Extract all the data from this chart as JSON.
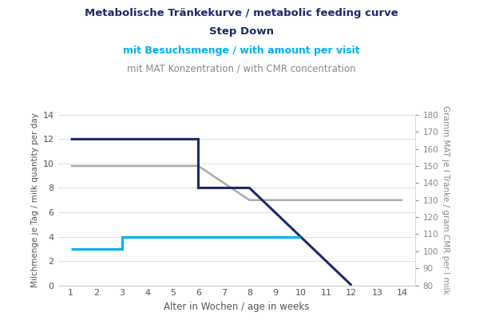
{
  "title_line1": "Metabolische Tränkekurve / metabolic feeding curve",
  "title_line2": "Step Down",
  "subtitle_cyan": "mit Besuchsmenge / with amount per visit",
  "subtitle_gray": "mit MAT Konzentration / with CMR concentration",
  "xlabel": "Alter in Wochen / age in weeks",
  "ylabel_left": "Milchmenge je Tag / milk quantity per day",
  "ylabel_right": "Gramm MAT je l Tränke / gram CMR per l milk",
  "xlim": [
    0.5,
    14.5
  ],
  "ylim_left": [
    0,
    14
  ],
  "ylim_right": [
    80,
    180
  ],
  "xticks": [
    1,
    2,
    3,
    4,
    5,
    6,
    7,
    8,
    9,
    10,
    11,
    12,
    13,
    14
  ],
  "yticks_left": [
    0,
    2,
    4,
    6,
    8,
    10,
    12,
    14
  ],
  "yticks_right": [
    80,
    90,
    100,
    110,
    120,
    130,
    140,
    150,
    160,
    170,
    180
  ],
  "navy_x": [
    1,
    6,
    6,
    8,
    8,
    12
  ],
  "navy_y": [
    12,
    12,
    8,
    8,
    8,
    0
  ],
  "navy_color": "#1b2a6b",
  "navy_linewidth": 2.2,
  "cyan_x": [
    1,
    2,
    3,
    3,
    10
  ],
  "cyan_y": [
    3,
    3,
    3,
    4,
    4
  ],
  "cyan_color": "#00b0f0",
  "cyan_linewidth": 2.2,
  "gray_x": [
    1,
    6,
    8,
    9,
    14
  ],
  "gray_y": [
    9.8,
    9.8,
    7.0,
    7.0,
    7.0
  ],
  "gray_color": "#aaaaaa",
  "gray_linewidth": 1.8,
  "background_color": "#ffffff",
  "grid_color": "#dddddd",
  "title_color": "#1b2a6b",
  "subtitle_cyan_color": "#00b0f0",
  "subtitle_gray_color": "#888888",
  "axis_label_color": "#555555",
  "tick_label_color": "#555555"
}
